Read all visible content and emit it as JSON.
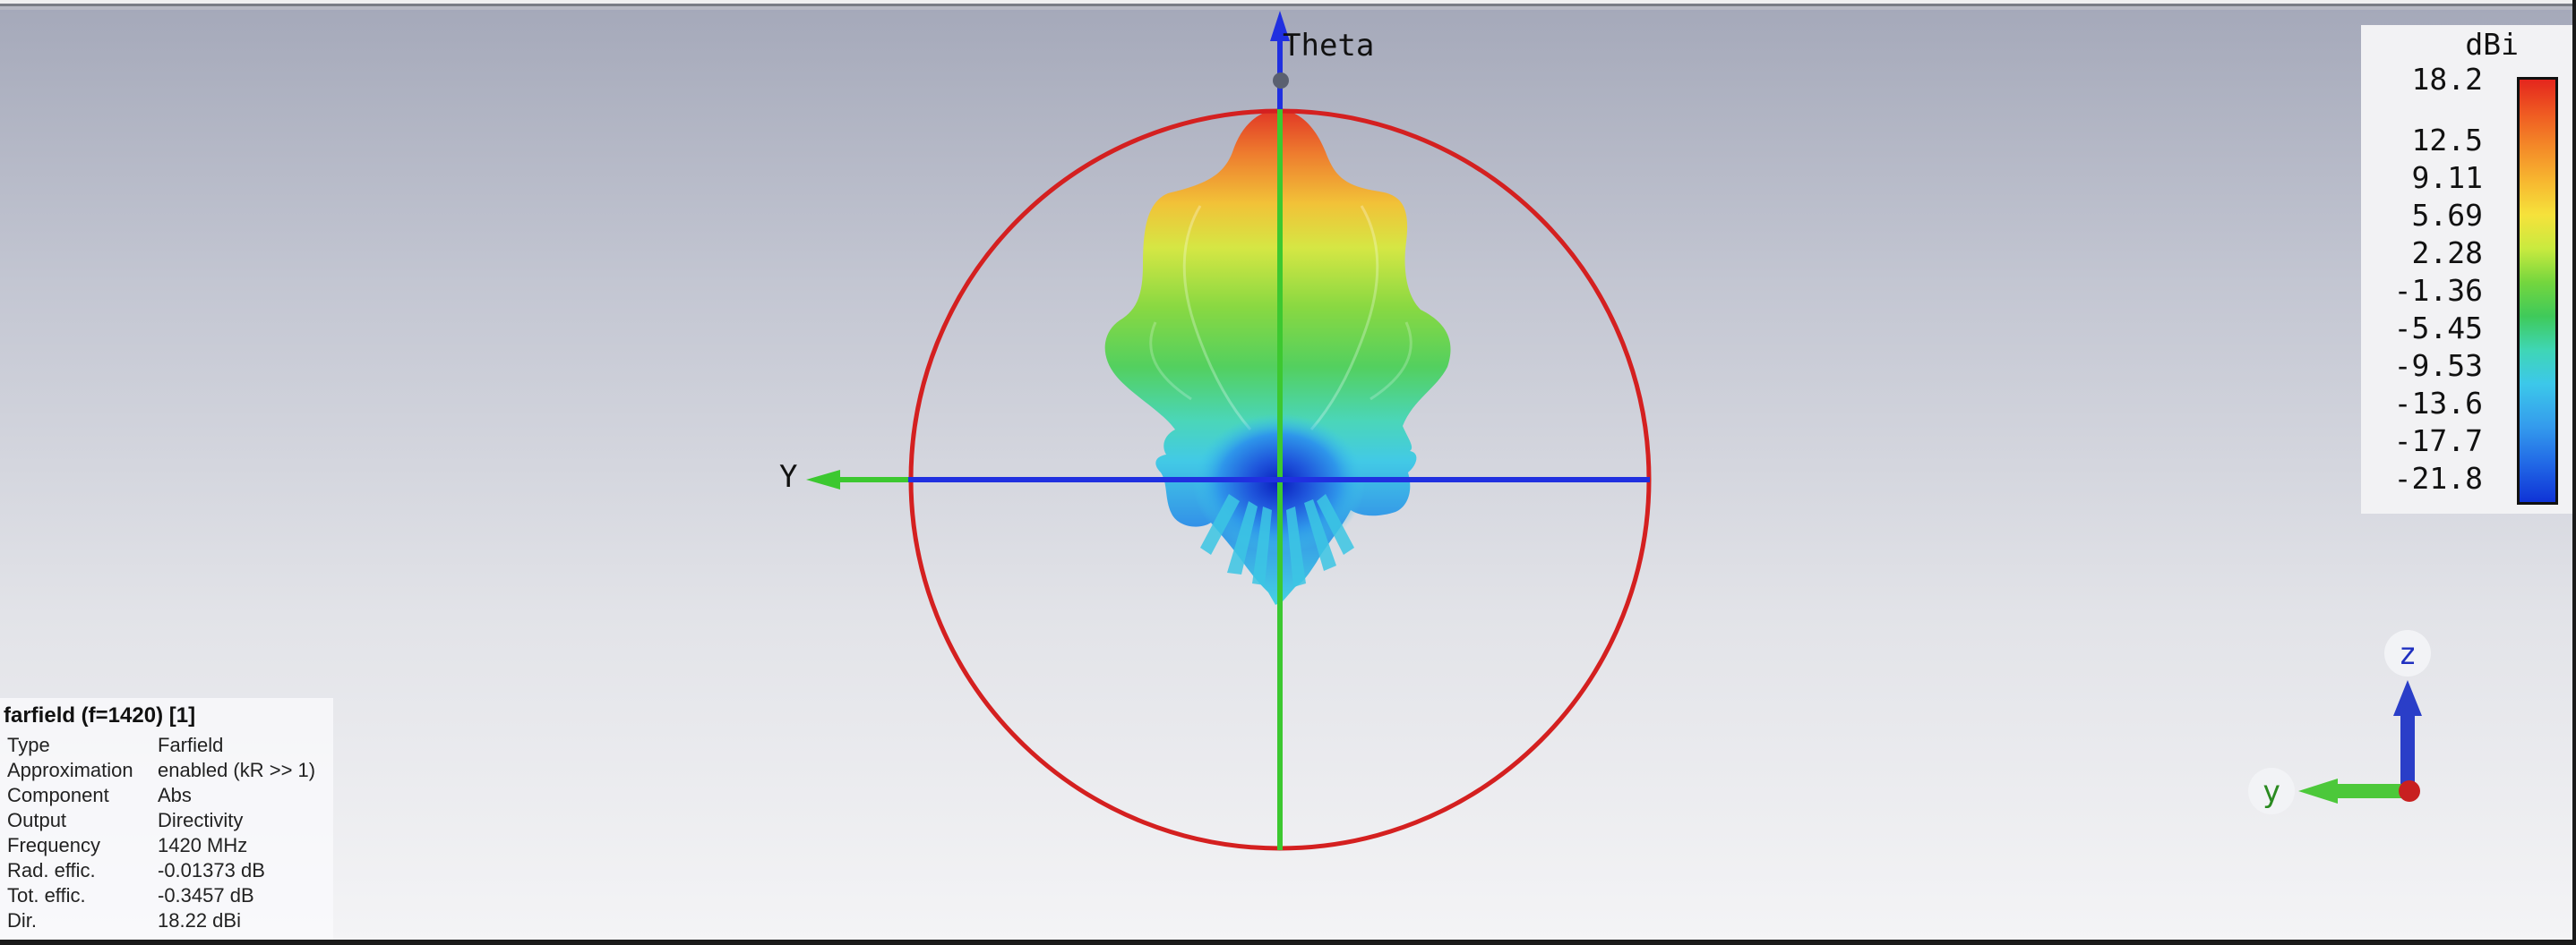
{
  "axis_labels": {
    "theta": "Theta",
    "y_main": "Y",
    "triad_z": "z",
    "triad_y": "y"
  },
  "colors": {
    "circle": "#d42020",
    "horizontal_axis": "#2030e0",
    "vertical_axis": "#3cc830",
    "y_arrow": "#3cc830",
    "theta_arrow": "#2030e0"
  },
  "legend": {
    "unit": "dBi",
    "ticks": [
      "18.2",
      "12.5",
      "9.11",
      "5.69",
      "2.28",
      "-1.36",
      "-5.45",
      "-9.53",
      "-13.6",
      "-17.7",
      "-21.8"
    ],
    "color_scale": [
      "#e4261d",
      "#f48a28",
      "#f6e23b",
      "#74d63e",
      "#3fd6b5",
      "#3cc8ea",
      "#2168e6",
      "#0f33d6"
    ]
  },
  "info": {
    "title": "farfield (f=1420) [1]",
    "rows": [
      {
        "label": "Type",
        "value": "Farfield"
      },
      {
        "label": "Approximation",
        "value": "enabled (kR >> 1)"
      },
      {
        "label": "Component",
        "value": "Abs"
      },
      {
        "label": "Output",
        "value": "Directivity"
      },
      {
        "label": "Frequency",
        "value": "1420 MHz"
      },
      {
        "label": "Rad. effic.",
        "value": "-0.01373 dB"
      },
      {
        "label": "Tot. effic.",
        "value": "-0.3457 dB"
      },
      {
        "label": "Dir.",
        "value": "18.22 dBi"
      }
    ]
  }
}
